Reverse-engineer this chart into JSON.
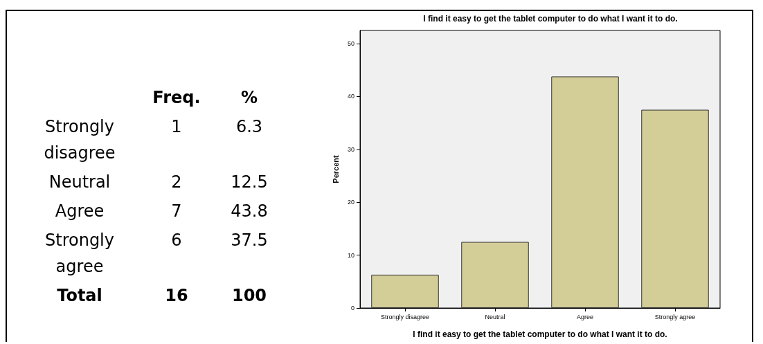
{
  "chart_data": [
    {
      "type": "other",
      "annotations": [
        "Freq.",
        "%",
        "Strongly disagree",
        "1",
        "6.3",
        "Neutral",
        "2",
        "12.5",
        "Agree",
        "7",
        "43.8",
        "Strongly agree",
        "6",
        "37.5",
        "Total",
        "16",
        "100"
      ]
    },
    {
      "type": "bar",
      "title": "I find it easy to get the tablet computer to do what I want it to do.",
      "xlabel": "I find it easy to get the tablet computer to do what I want it to do.",
      "ylabel": "Percent",
      "categories": [
        "Strongly disagree",
        "Neutral",
        "Agree",
        "Strongly agree"
      ],
      "values": [
        6.3,
        12.5,
        43.8,
        37.5
      ],
      "color": "#d3ce97",
      "ylim": [
        0,
        52.5
      ],
      "yticks": [
        0,
        10,
        20,
        30,
        40,
        50
      ],
      "grid": false
    }
  ]
}
